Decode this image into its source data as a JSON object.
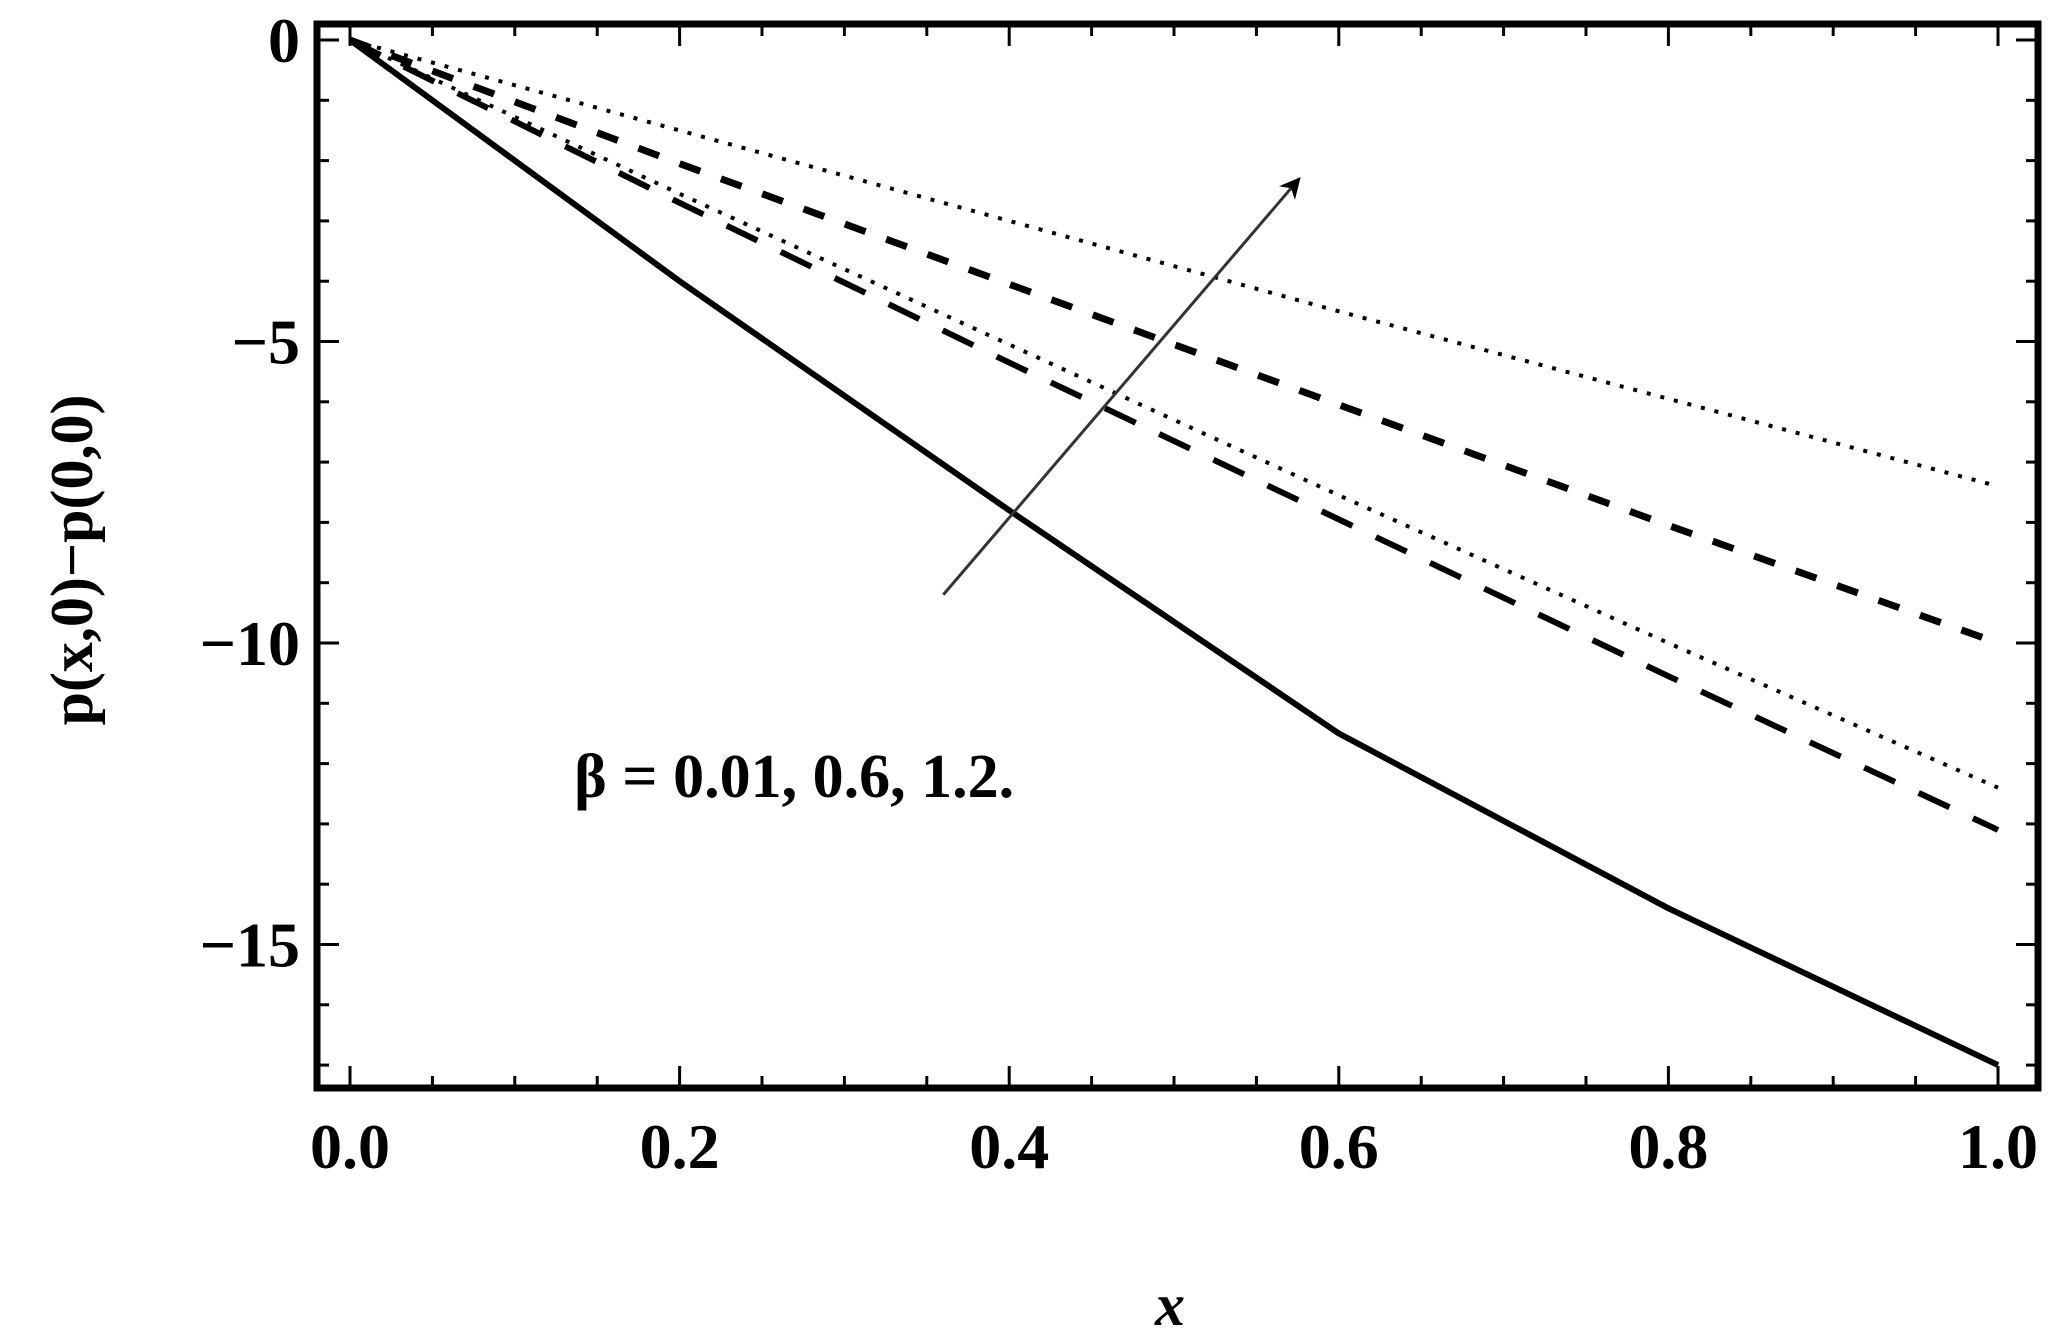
{
  "chart_data": {
    "type": "line",
    "title": "",
    "xlabel": "x",
    "ylabel": "p(x,0)−p(0,0)",
    "xlim": [
      0,
      1.0
    ],
    "ylim": [
      -17.4,
      0.25
    ],
    "grid": false,
    "x_ticks": [
      "0.0",
      "0.2",
      "0.4",
      "0.6",
      "0.8",
      "1.0"
    ],
    "y_ticks": [
      "0",
      "−5",
      "−10",
      "−15"
    ],
    "x": [
      0,
      0.2,
      0.4,
      0.6,
      0.8,
      1.0
    ],
    "series": [
      {
        "style": "solid",
        "values": [
          0,
          -4.0,
          -7.8,
          -11.5,
          -14.4,
          -17.0
        ]
      },
      {
        "style": "long-dash",
        "values": [
          0,
          -2.7,
          -5.35,
          -7.95,
          -10.55,
          -13.1
        ]
      },
      {
        "style": "dotted",
        "values": [
          0,
          -2.55,
          -5.05,
          -7.55,
          -10.0,
          -12.4
        ]
      },
      {
        "style": "short-dash",
        "values": [
          0,
          -2.05,
          -4.05,
          -6.05,
          -8.05,
          -10.0
        ]
      },
      {
        "style": "dotted",
        "values": [
          0,
          -1.5,
          -3.0,
          -4.5,
          -5.95,
          -7.4
        ]
      }
    ],
    "annotation": {
      "text": "β = 0.01, 0.6, 1.2.",
      "arrow_from": [
        0.36,
        -9.2
      ],
      "arrow_to": [
        0.576,
        -2.3
      ]
    },
    "colors": {
      "lines": "#000000",
      "arrow": "#333333"
    }
  }
}
